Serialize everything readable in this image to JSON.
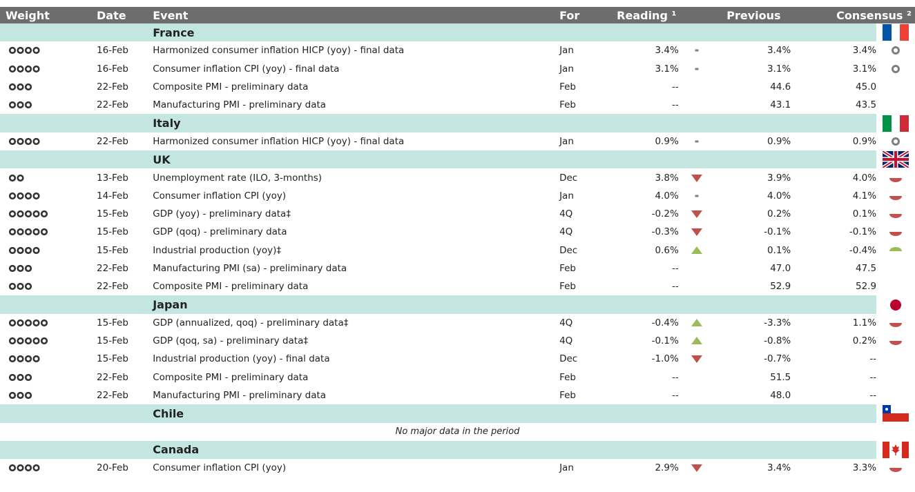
{
  "header": {
    "columns": [
      "Weight",
      "Date",
      "Event",
      "For",
      "Reading ¹",
      "Previous",
      "Consensus ²"
    ]
  },
  "groups": [
    {
      "title": "France",
      "rows": [
        {
          "weight": 4,
          "date": "16-Feb",
          "event": "Harmonized consumer inflation HICP (yoy) - final data",
          "for": "Jan",
          "reading": "3.4%",
          "trend": "flat",
          "previous": "3.4%",
          "consensus": "3.4%",
          "surprise": "neutral"
        },
        {
          "weight": 4,
          "date": "16-Feb",
          "event": "Consumer inflation CPI (yoy) - final data",
          "for": "Jan",
          "reading": "3.1%",
          "trend": "flat",
          "previous": "3.1%",
          "consensus": "3.1%",
          "surprise": "neutral"
        },
        {
          "weight": 3,
          "date": "22-Feb",
          "event": "Composite PMI - preliminary data",
          "for": "Feb",
          "reading": "--",
          "previous": "44.6",
          "consensus": "45.0"
        },
        {
          "weight": 3,
          "date": "22-Feb",
          "event": "Manufacturing PMI - preliminary data",
          "for": "Feb",
          "reading": "--",
          "previous": "43.1",
          "consensus": "43.5"
        }
      ]
    },
    {
      "title": "Italy",
      "rows": [
        {
          "weight": 4,
          "date": "22-Feb",
          "event": "Harmonized consumer inflation HICP (yoy) - final data",
          "for": "Jan",
          "reading": "0.9%",
          "trend": "flat",
          "previous": "0.9%",
          "consensus": "0.9%",
          "surprise": "neutral"
        }
      ]
    },
    {
      "title": "UK",
      "rows": [
        {
          "weight": 2,
          "date": "13-Feb",
          "event": "Unemployment rate (ILO, 3-months)",
          "for": "Dec",
          "reading": "3.8%",
          "trend": "down",
          "previous": "3.9%",
          "consensus": "4.0%",
          "surprise": "negative"
        },
        {
          "weight": 4,
          "date": "14-Feb",
          "event": "Consumer inflation CPI (yoy)",
          "for": "Jan",
          "reading": "4.0%",
          "trend": "flat",
          "previous": "4.0%",
          "consensus": "4.1%",
          "surprise": "negative"
        },
        {
          "weight": 5,
          "date": "15-Feb",
          "event": "GDP (yoy) - preliminary data‡",
          "for": "4Q",
          "reading": "-0.2%",
          "trend": "down",
          "previous": "0.2%",
          "consensus": "0.1%",
          "surprise": "negative"
        },
        {
          "weight": 5,
          "date": "15-Feb",
          "event": "GDP (qoq) - preliminary data",
          "for": "4Q",
          "reading": "-0.3%",
          "trend": "down",
          "previous": "-0.1%",
          "consensus": "-0.1%",
          "surprise": "negative"
        },
        {
          "weight": 4,
          "date": "15-Feb",
          "event": "Industrial production (yoy)‡",
          "for": "Dec",
          "reading": "0.6%",
          "trend": "up",
          "previous": "0.1%",
          "consensus": "-0.4%",
          "surprise": "positive"
        },
        {
          "weight": 3,
          "date": "22-Feb",
          "event": "Manufacturing PMI (sa) - preliminary data",
          "for": "Feb",
          "reading": "--",
          "previous": "47.0",
          "consensus": "47.5"
        },
        {
          "weight": 3,
          "date": "22-Feb",
          "event": "Composite PMI - preliminary data",
          "for": "Feb",
          "reading": "--",
          "previous": "52.9",
          "consensus": "52.9"
        }
      ]
    },
    {
      "title": "Japan",
      "rows": [
        {
          "weight": 5,
          "date": "15-Feb",
          "event": "GDP (annualized, qoq) - preliminary data‡",
          "for": "4Q",
          "reading": "-0.4%",
          "trend": "up",
          "previous": "-3.3%",
          "consensus": "1.1%",
          "surprise": "negative"
        },
        {
          "weight": 5,
          "date": "15-Feb",
          "event": "GDP (qoq, sa) - preliminary data‡",
          "for": "4Q",
          "reading": "-0.1%",
          "trend": "up",
          "previous": "-0.8%",
          "consensus": "0.2%",
          "surprise": "negative"
        },
        {
          "weight": 4,
          "date": "15-Feb",
          "event": "Industrial production (yoy) - final data",
          "for": "Dec",
          "reading": "-1.0%",
          "trend": "down",
          "previous": "-0.7%",
          "consensus": "--"
        },
        {
          "weight": 3,
          "date": "22-Feb",
          "event": "Composite PMI - preliminary data",
          "for": "Feb",
          "reading": "--",
          "previous": "51.5",
          "consensus": "--"
        },
        {
          "weight": 3,
          "date": "22-Feb",
          "event": "Manufacturing PMI - preliminary data",
          "for": "Feb",
          "reading": "--",
          "previous": "48.0",
          "consensus": "--"
        }
      ]
    },
    {
      "title": "Chile",
      "note": "No major data in the period",
      "rows": []
    },
    {
      "title": "Canada",
      "rows": [
        {
          "weight": 4,
          "date": "20-Feb",
          "event": "Consumer inflation CPI (yoy)",
          "for": "Jan",
          "reading": "2.9%",
          "trend": "down",
          "previous": "3.4%",
          "consensus": "3.3%",
          "surprise": "negative"
        }
      ]
    }
  ]
}
